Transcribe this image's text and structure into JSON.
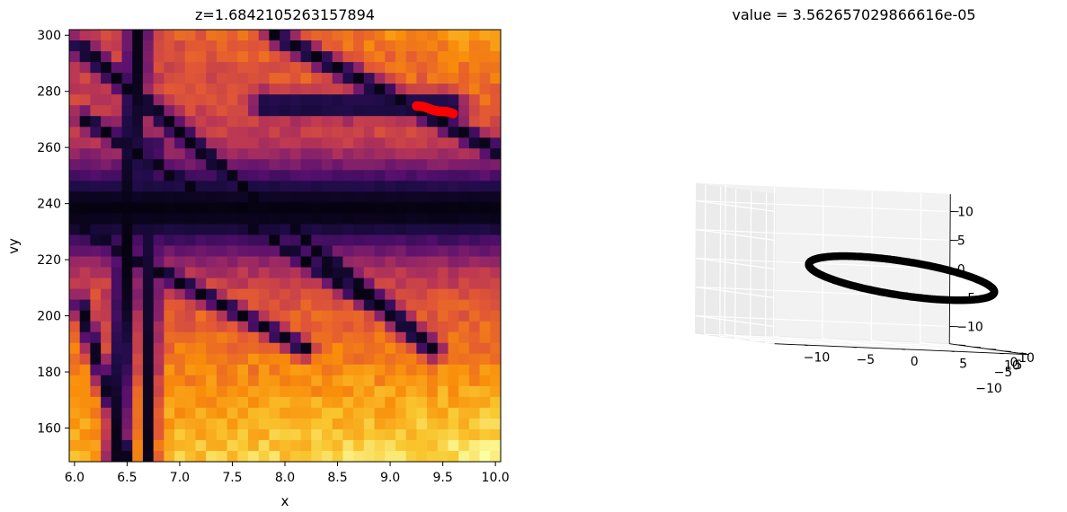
{
  "chart_data": [
    {
      "type": "heatmap",
      "title": "z=1.6842105263157894",
      "xlabel": "x",
      "ylabel": "vy",
      "xlim": [
        5.95,
        10.05
      ],
      "ylim": [
        148,
        302
      ],
      "xticks": [
        {
          "value": 6.0,
          "label": "6.0"
        },
        {
          "value": 6.5,
          "label": "6.5"
        },
        {
          "value": 7.0,
          "label": "7.0"
        },
        {
          "value": 7.5,
          "label": "7.5"
        },
        {
          "value": 8.0,
          "label": "8.0"
        },
        {
          "value": 8.5,
          "label": "8.5"
        },
        {
          "value": 9.0,
          "label": "9.0"
        },
        {
          "value": 9.5,
          "label": "9.5"
        },
        {
          "value": 10.0,
          "label": "10.0"
        }
      ],
      "yticks": [
        {
          "value": 160,
          "label": "160"
        },
        {
          "value": 180,
          "label": "180"
        },
        {
          "value": 200,
          "label": "200"
        },
        {
          "value": 220,
          "label": "220"
        },
        {
          "value": 240,
          "label": "240"
        },
        {
          "value": 260,
          "label": "260"
        },
        {
          "value": 280,
          "label": "280"
        },
        {
          "value": 300,
          "label": "300"
        }
      ],
      "colormap": "inferno",
      "grid_cols": 41,
      "grid_rows": 40,
      "dark_lines": [
        {
          "from": [
            6.0,
            238
          ],
          "to": [
            10.05,
            238
          ],
          "width": 11
        },
        {
          "from": [
            7.8,
            275
          ],
          "to": [
            9.6,
            275
          ],
          "width": 3
        },
        {
          "from": [
            6.05,
            296
          ],
          "to": [
            9.4,
            188
          ],
          "width": 2.5
        },
        {
          "from": [
            6.1,
            270
          ],
          "to": [
            8.8,
            205
          ],
          "width": 2
        },
        {
          "from": [
            6.0,
            232
          ],
          "to": [
            8.2,
            188
          ],
          "width": 2
        },
        {
          "from": [
            7.9,
            300
          ],
          "to": [
            10.05,
            258
          ],
          "width": 2.5
        },
        {
          "from": [
            6.6,
            300
          ],
          "to": [
            6.4,
            150
          ],
          "width": 3
        },
        {
          "from": [
            6.75,
            262
          ],
          "to": [
            6.7,
            150
          ],
          "width": 2
        },
        {
          "from": [
            6.05,
            205
          ],
          "to": [
            6.5,
            150
          ],
          "width": 2
        }
      ],
      "highlight": {
        "color": "#ff0000",
        "center": [
          9.42,
          273.2
        ],
        "x_span": [
          9.25,
          9.6
        ],
        "y_span": [
          272.0,
          274.8
        ]
      }
    },
    {
      "type": "scatter",
      "projection": "3d",
      "title": "value = 3.562657029866616e-05",
      "xlim": [
        -13,
        13
      ],
      "ylim": [
        -13,
        13
      ],
      "zlim": [
        -13,
        13
      ],
      "xticks": [
        {
          "value": -10,
          "label": "−10"
        },
        {
          "value": -5,
          "label": "−5"
        },
        {
          "value": 0,
          "label": "0"
        },
        {
          "value": 5,
          "label": "5"
        },
        {
          "value": 10,
          "label": "10"
        }
      ],
      "yticks": [
        {
          "value": -10,
          "label": "−10"
        },
        {
          "value": -5,
          "label": "−5"
        },
        {
          "value": 0,
          "label": "0"
        },
        {
          "value": 5,
          "label": "5"
        },
        {
          "value": 10,
          "label": "10"
        }
      ],
      "zticks": [
        {
          "value": -10,
          "label": "−10"
        },
        {
          "value": -5,
          "label": "−5"
        },
        {
          "value": 0,
          "label": "0"
        },
        {
          "value": 5,
          "label": "5"
        },
        {
          "value": 10,
          "label": "10"
        }
      ],
      "grid": true,
      "marker_color": "#000000",
      "ring": {
        "x_range": [
          -5.5,
          13.5
        ],
        "z_center": -1.3,
        "z_half_height": 3.0,
        "tilt": -0.18,
        "points": 240
      }
    }
  ]
}
